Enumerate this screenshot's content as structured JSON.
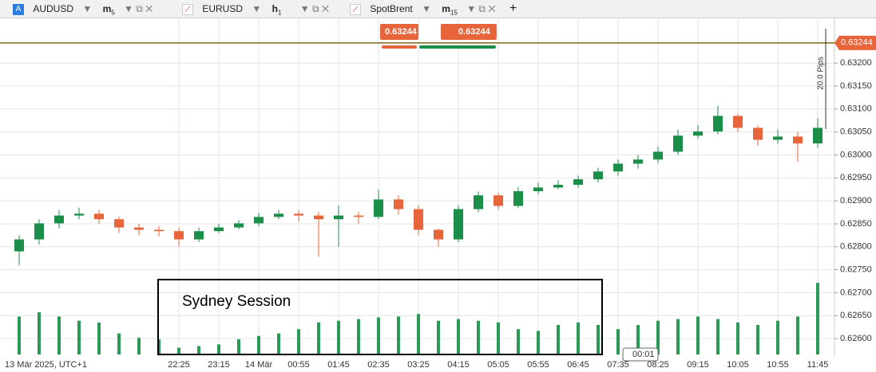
{
  "tabs": [
    {
      "icon": "A",
      "symbol": "AUDUSD",
      "timeframe": "m",
      "period": "5"
    },
    {
      "symbol": "EURUSD",
      "timeframe": "h",
      "period": "1"
    },
    {
      "symbol": "SpotBrent",
      "timeframe": "m",
      "period": "15"
    }
  ],
  "toolbar": {
    "sell": "0.63244",
    "buy": "0.63244"
  },
  "chart_data": {
    "type": "candlestick",
    "x_start_label": "13 Mär 2025, UTC+1",
    "categories": [
      null,
      null,
      null,
      null,
      null,
      null,
      null,
      null,
      "22:25",
      null,
      "23:15",
      null,
      "14 Mär",
      null,
      "00:55",
      null,
      "01:45",
      null,
      "02:35",
      null,
      "03:25",
      null,
      "04:15",
      null,
      "05:05",
      null,
      "05:55",
      null,
      "06:45",
      null,
      "07:35",
      null,
      "08:25",
      null,
      "09:15",
      null,
      "10:05",
      null,
      "10:55",
      null,
      "11:45"
    ],
    "open": [
      0.6279,
      0.62816,
      0.62851,
      0.62868,
      0.62872,
      0.6286,
      0.62842,
      0.62837,
      0.62834,
      0.62816,
      0.62834,
      0.62842,
      0.62851,
      0.62865,
      0.62872,
      0.62868,
      0.6286,
      0.62868,
      0.62865,
      0.62903,
      0.62882,
      0.62837,
      0.62816,
      0.62882,
      0.62912,
      0.62889,
      0.62921,
      0.62929,
      0.62935,
      0.62947,
      0.62964,
      0.62981,
      0.6299,
      0.63007,
      0.63042,
      0.63051,
      0.63085,
      0.63059,
      0.63033,
      0.6304,
      0.63025
    ],
    "high": [
      0.62825,
      0.6286,
      0.6288,
      0.62885,
      0.6288,
      0.62866,
      0.6285,
      0.62845,
      0.62842,
      0.62842,
      0.6285,
      0.62858,
      0.62874,
      0.6288,
      0.6288,
      0.62876,
      0.6289,
      0.62876,
      0.62924,
      0.62912,
      0.6289,
      0.6284,
      0.6289,
      0.6292,
      0.62918,
      0.6293,
      0.6294,
      0.62945,
      0.62955,
      0.62972,
      0.6299,
      0.63,
      0.63018,
      0.63055,
      0.63065,
      0.63107,
      0.6309,
      0.63065,
      0.63055,
      0.6305,
      0.6308
    ],
    "low": [
      0.6276,
      0.62805,
      0.6284,
      0.6286,
      0.6285,
      0.6283,
      0.62825,
      0.62822,
      0.628,
      0.6281,
      0.6283,
      0.62838,
      0.62845,
      0.6286,
      0.62855,
      0.62778,
      0.628,
      0.6285,
      0.6286,
      0.6287,
      0.62825,
      0.628,
      0.6281,
      0.62875,
      0.6288,
      0.62885,
      0.62915,
      0.62925,
      0.62928,
      0.6294,
      0.62955,
      0.6297,
      0.62982,
      0.63,
      0.63035,
      0.63045,
      0.6305,
      0.6302,
      0.63025,
      0.62985,
      0.63015
    ],
    "close": [
      0.62816,
      0.62851,
      0.62868,
      0.62872,
      0.6286,
      0.62842,
      0.62837,
      0.62834,
      0.62816,
      0.62834,
      0.62842,
      0.62851,
      0.62865,
      0.62872,
      0.62868,
      0.6286,
      0.62868,
      0.62865,
      0.62903,
      0.62882,
      0.62837,
      0.62816,
      0.62882,
      0.62912,
      0.62889,
      0.62921,
      0.62929,
      0.62935,
      0.62947,
      0.62964,
      0.62981,
      0.6299,
      0.63007,
      0.63042,
      0.63051,
      0.63085,
      0.63059,
      0.63033,
      0.6304,
      0.63025,
      0.63059
    ],
    "volume": [
      45,
      50,
      45,
      40,
      38,
      25,
      20,
      18,
      8,
      10,
      12,
      18,
      22,
      25,
      30,
      38,
      40,
      42,
      44,
      45,
      48,
      40,
      42,
      40,
      38,
      30,
      28,
      35,
      38,
      35,
      30,
      35,
      40,
      42,
      45,
      42,
      38,
      35,
      40,
      45,
      85
    ],
    "up_color": "#1b8f4a",
    "down_color": "#e8643a",
    "volume_color": "#2a9a57",
    "ylim": [
      0.62562,
      0.63294
    ],
    "yticks": [
      {
        "value": 0.626,
        "label": "0.62600"
      },
      {
        "value": 0.6265,
        "label": "0.62650"
      },
      {
        "value": 0.627,
        "label": "0.62700"
      },
      {
        "value": 0.6275,
        "label": "0.62750"
      },
      {
        "value": 0.628,
        "label": "0.62800"
      },
      {
        "value": 0.6285,
        "label": "0.62850"
      },
      {
        "value": 0.629,
        "label": "0.62900"
      },
      {
        "value": 0.6295,
        "label": "0.62950"
      },
      {
        "value": 0.63,
        "label": "0.63000"
      },
      {
        "value": 0.6305,
        "label": "0.63050"
      },
      {
        "value": 0.631,
        "label": "0.63100"
      },
      {
        "value": 0.6315,
        "label": "0.63150"
      },
      {
        "value": 0.632,
        "label": "0.63200"
      }
    ],
    "price_line": 0.63244,
    "price_line_color": "#7a6a10",
    "grid": true,
    "annotations": {
      "pips": "20.0 Pips",
      "session": "Sydney Session",
      "countdown": "00:01"
    }
  }
}
